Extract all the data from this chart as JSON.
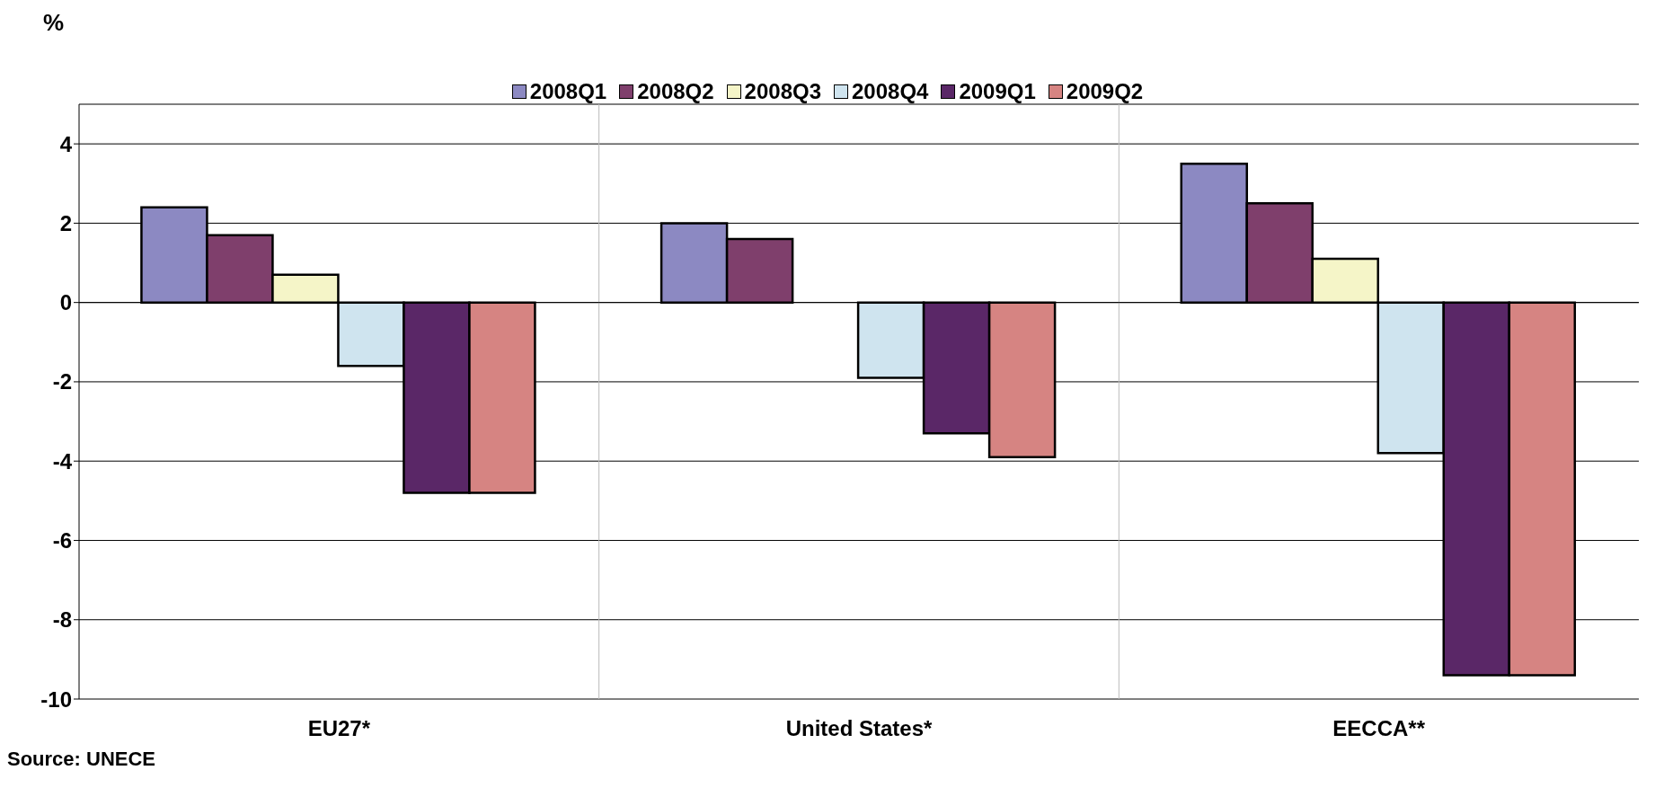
{
  "chart_data": {
    "type": "bar",
    "ylabel": "%",
    "categories": [
      "EU27*",
      "United States*",
      "EECCA**"
    ],
    "series": [
      {
        "name": "2008Q1",
        "color": "#8c89c2",
        "values": [
          2.4,
          2.0,
          3.5
        ]
      },
      {
        "name": "2008Q2",
        "color": "#7f3f6c",
        "values": [
          1.7,
          1.6,
          2.5
        ]
      },
      {
        "name": "2008Q3",
        "color": "#f5f5c8",
        "values": [
          0.7,
          null,
          1.1
        ]
      },
      {
        "name": "2008Q4",
        "color": "#cfe4ef",
        "values": [
          -1.6,
          -1.9,
          -3.8
        ]
      },
      {
        "name": "2009Q1",
        "color": "#5a2767",
        "values": [
          -4.8,
          -3.3,
          -9.4
        ]
      },
      {
        "name": "2009Q2",
        "color": "#d68482",
        "values": [
          -4.8,
          -3.9,
          -9.4
        ]
      }
    ],
    "ylim": [
      -10,
      5
    ],
    "yticks": [
      -10,
      -8,
      -6,
      -4,
      -2,
      0,
      2,
      4
    ],
    "grid": true,
    "legend": "top",
    "annotations": [
      "Source: UNECE"
    ]
  }
}
